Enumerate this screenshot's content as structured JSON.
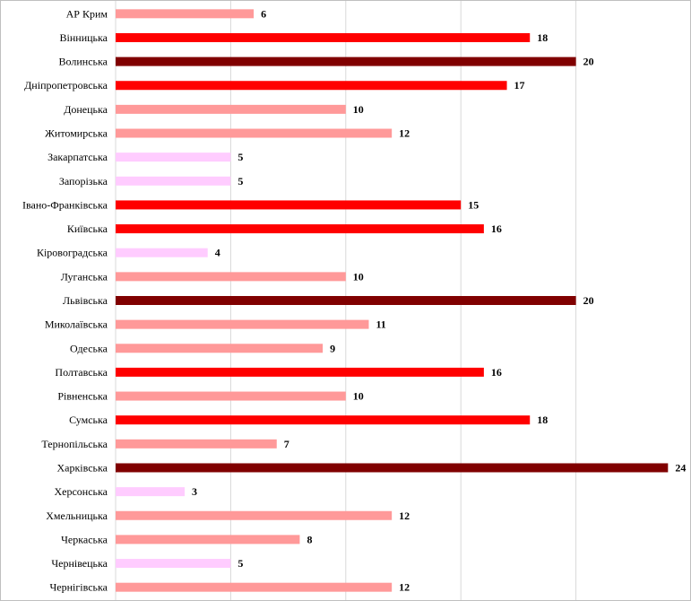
{
  "chart_data": {
    "type": "bar",
    "orientation": "horizontal",
    "title": "",
    "xlabel": "",
    "ylabel": "",
    "xlim": [
      0,
      25
    ],
    "grid": true,
    "legend": "none",
    "categories": [
      "АР Крим",
      "Вінницька",
      "Волинська",
      "Дніпропетровська",
      "Донецька",
      "Житомирська",
      "Закарпатська",
      "Запорізька",
      "Івано-Франківська",
      "Київська",
      "Кіровоградська",
      "Луганська",
      "Львівська",
      "Миколаївська",
      "Одеська",
      "Полтавська",
      "Рівненська",
      "Сумська",
      "Тернопільська",
      "Харківська",
      "Херсонська",
      "Хмельницька",
      "Черкаська",
      "Чернівецька",
      "Чернігівська"
    ],
    "values": [
      6,
      18,
      20,
      17,
      10,
      12,
      5,
      5,
      15,
      16,
      4,
      10,
      20,
      11,
      9,
      16,
      10,
      18,
      7,
      24,
      3,
      12,
      8,
      5,
      12
    ],
    "color_scale": [
      {
        "min": 0,
        "max": 5,
        "color": "#ffccff"
      },
      {
        "min": 6,
        "max": 12,
        "color": "#ff9999"
      },
      {
        "min": 13,
        "max": 18,
        "color": "#ff0000"
      },
      {
        "min": 19,
        "max": 100,
        "color": "#800000"
      }
    ]
  }
}
